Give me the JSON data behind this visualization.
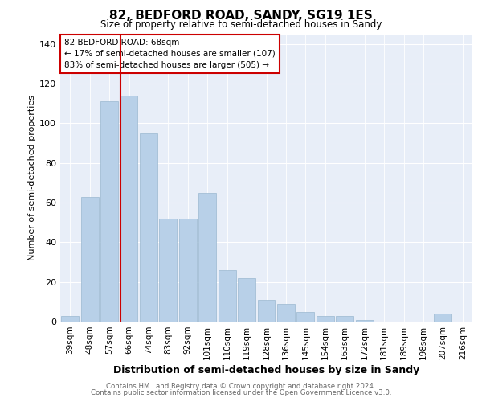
{
  "title": "82, BEDFORD ROAD, SANDY, SG19 1ES",
  "subtitle": "Size of property relative to semi-detached houses in Sandy",
  "xlabel": "Distribution of semi-detached houses by size in Sandy",
  "ylabel": "Number of semi-detached properties",
  "categories": [
    "39sqm",
    "48sqm",
    "57sqm",
    "66sqm",
    "74sqm",
    "83sqm",
    "92sqm",
    "101sqm",
    "110sqm",
    "119sqm",
    "128sqm",
    "136sqm",
    "145sqm",
    "154sqm",
    "163sqm",
    "172sqm",
    "181sqm",
    "189sqm",
    "198sqm",
    "207sqm",
    "216sqm"
  ],
  "values": [
    3,
    63,
    111,
    114,
    95,
    52,
    52,
    65,
    26,
    22,
    11,
    9,
    5,
    3,
    3,
    1,
    0,
    0,
    0,
    4,
    0
  ],
  "bar_color": "#b8d0e8",
  "bar_edge_color": "#9ab8d0",
  "red_line_index": 3,
  "annotation_text_line1": "82 BEDFORD ROAD: 68sqm",
  "annotation_text_line2": "← 17% of semi-detached houses are smaller (107)",
  "annotation_text_line3": "83% of semi-detached houses are larger (505) →",
  "ylim": [
    0,
    145
  ],
  "yticks": [
    0,
    20,
    40,
    60,
    80,
    100,
    120,
    140
  ],
  "bg_color": "#e8eef8",
  "footer_line1": "Contains HM Land Registry data © Crown copyright and database right 2024.",
  "footer_line2": "Contains public sector information licensed under the Open Government Licence v3.0."
}
